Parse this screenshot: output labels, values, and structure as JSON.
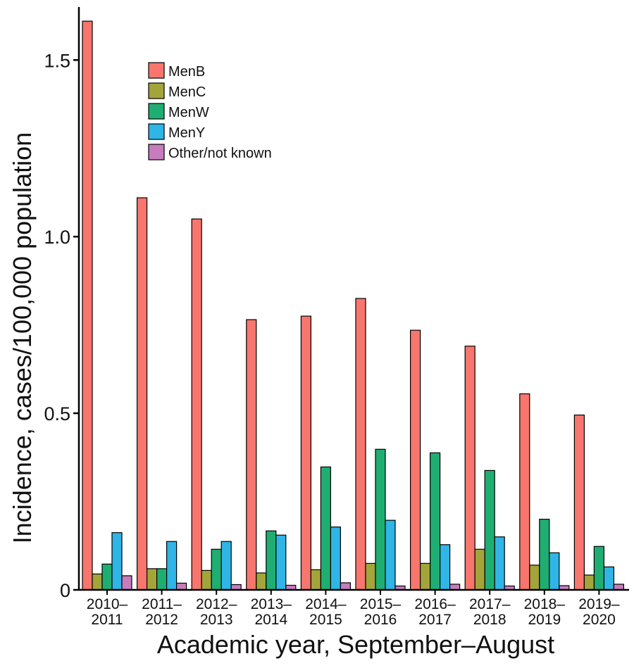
{
  "chart_data": {
    "type": "bar",
    "title": "",
    "xlabel": "Academic year, September–August",
    "ylabel": "Incidence, cases/100,000 population",
    "ylim": [
      0,
      1.6
    ],
    "yticks": [
      "0",
      "0.5",
      "1.0",
      "1.5"
    ],
    "ytick_values": [
      0,
      0.5,
      1.0,
      1.5
    ],
    "legend_position": "top-left",
    "grid": false,
    "categories": [
      [
        "2010–",
        "2011"
      ],
      [
        "2011–",
        "2012"
      ],
      [
        "2012–",
        "2013"
      ],
      [
        "2013–",
        "2014"
      ],
      [
        "2014–",
        "2015"
      ],
      [
        "2015–",
        "2016"
      ],
      [
        "2016–",
        "2017"
      ],
      [
        "2017–",
        "2018"
      ],
      [
        "2018–",
        "2019"
      ],
      [
        "2019–",
        "2020"
      ]
    ],
    "series": [
      {
        "name": "MenB",
        "color": "#f8766d",
        "values": [
          1.61,
          1.11,
          1.05,
          0.765,
          0.775,
          0.825,
          0.735,
          0.69,
          0.555,
          0.495
        ]
      },
      {
        "name": "MenC",
        "color": "#a3a53a",
        "values": [
          0.045,
          0.06,
          0.055,
          0.048,
          0.057,
          0.075,
          0.075,
          0.115,
          0.07,
          0.042
        ]
      },
      {
        "name": "MenW",
        "color": "#1fae72",
        "values": [
          0.073,
          0.06,
          0.115,
          0.167,
          0.348,
          0.398,
          0.388,
          0.338,
          0.2,
          0.123
        ]
      },
      {
        "name": "MenY",
        "color": "#2fb5e6",
        "values": [
          0.162,
          0.137,
          0.137,
          0.155,
          0.178,
          0.197,
          0.128,
          0.15,
          0.105,
          0.065
        ]
      },
      {
        "name": "Other/not known",
        "color": "#c77cbd",
        "values": [
          0.04,
          0.019,
          0.015,
          0.013,
          0.02,
          0.011,
          0.016,
          0.011,
          0.012,
          0.016
        ]
      }
    ]
  }
}
